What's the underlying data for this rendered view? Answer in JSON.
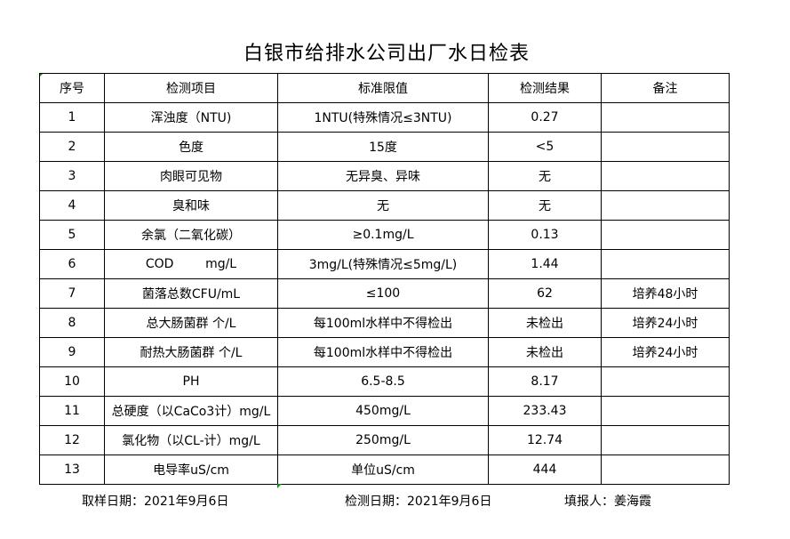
{
  "title": "白银市给排水公司出厂水日检表",
  "headers": [
    "序号",
    "检测项目",
    "标准限值",
    "检测结果",
    "备注"
  ],
  "rows": [
    [
      "1",
      "浑浊度（NTU)",
      "1NTU(特殊情况≤3NTU)",
      "0.27",
      ""
    ],
    [
      "2",
      "色度",
      "15度",
      "<5",
      ""
    ],
    [
      "3",
      "肉眼可见物",
      "无异臭、异味",
      "无",
      ""
    ],
    [
      "4",
      "臭和味",
      "无",
      "无",
      ""
    ],
    [
      "5",
      "余氯（二氧化碳）",
      "≥0.1mg/L",
      "0.13",
      ""
    ],
    [
      "6",
      "COD        mg/L",
      "3mg/L(特殊情况≤5mg/L)",
      "1.44",
      ""
    ],
    [
      "7",
      "菌落总数CFU/mL",
      "≤100",
      "62",
      "培养48小时"
    ],
    [
      "8",
      "总大肠菌群 个/L",
      "每100ml水样中不得检出",
      "未检出",
      "培养24小时"
    ],
    [
      "9",
      "耐热大肠菌群 个/L",
      "每100ml水样中不得检出",
      "未检出",
      "培养24小时"
    ],
    [
      "10",
      "PH",
      "6.5-8.5",
      "8.17",
      ""
    ],
    [
      "11",
      "总硬度（以CaCo3计）mg/L",
      "450mg/L",
      "233.43",
      ""
    ],
    [
      "12",
      "氯化物（以CL-计）mg/L",
      "250mg/L",
      "12.74",
      ""
    ],
    [
      "13",
      "电导率uS/cm",
      "单位uS/cm",
      "444",
      ""
    ]
  ],
  "footer": {
    "sampling_date": "取样日期：2021年9月6日",
    "test_date": "检测日期：2021年9月6日",
    "reporter": "填报人：姜海霞"
  }
}
